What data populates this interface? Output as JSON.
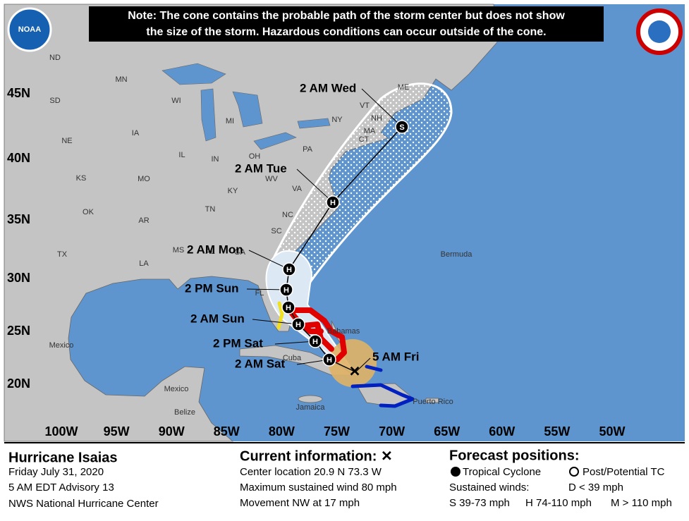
{
  "note": {
    "line1": "Note: The cone contains the probable path of the storm center but does not show",
    "line2": "the size of the storm. Hazardous conditions can occur outside of the cone."
  },
  "logos": {
    "noaa": "NOAA"
  },
  "map": {
    "latitude_labels": [
      "45N",
      "40N",
      "35N",
      "30N",
      "25N",
      "20N"
    ],
    "longitude_labels": [
      "100W",
      "95W",
      "90W",
      "85W",
      "80W",
      "75W",
      "70W",
      "65W",
      "60W",
      "55W",
      "50W"
    ],
    "place_labels": [
      "ND",
      "SD",
      "MN",
      "WI",
      "MI",
      "NE",
      "IA",
      "IL",
      "IN",
      "OH",
      "PA",
      "NY",
      "VT",
      "NH",
      "ME",
      "MA",
      "CT",
      "KS",
      "MO",
      "KY",
      "WV",
      "VA",
      "OK",
      "AR",
      "TN",
      "NC",
      "SC",
      "MS",
      "AL",
      "GA",
      "TX",
      "LA",
      "FL",
      "Bermuda",
      "Bahamas",
      "Mexico",
      "Cuba",
      "Mexico",
      "Belize",
      "Jamaica",
      "Puerto Rico"
    ],
    "forecast_points": [
      {
        "time": "2 AM Wed",
        "symbol": "S"
      },
      {
        "time": "2 AM Tue",
        "symbol": "H"
      },
      {
        "time": "2 AM Mon",
        "symbol": "H"
      },
      {
        "time": "2 PM Sun",
        "symbol": "H"
      },
      {
        "time": null,
        "symbol": "H"
      },
      {
        "time": "2 AM Sun",
        "symbol": "H"
      },
      {
        "time": "2 PM Sat",
        "symbol": "H"
      },
      {
        "time": "2 AM Sat",
        "symbol": "H"
      }
    ],
    "current_label": "5 AM Fri"
  },
  "info": {
    "storm_name": "Hurricane Isaias",
    "date": "Friday July 31, 2020",
    "advisory": "5 AM EDT Advisory 13",
    "office": "NWS National Hurricane Center",
    "current_heading": "Current information: ✕",
    "center_location": "Center location 20.9 N 73.3 W",
    "max_wind": "Maximum sustained wind 80 mph",
    "movement": "Movement NW at 17 mph",
    "forecast_heading": "Forecast positions:",
    "tropical_cyclone": "Tropical Cyclone",
    "post_potential": "Post/Potential TC",
    "sustained_winds": "Sustained winds:",
    "d_range": "D < 39 mph",
    "s_range": "S 39-73 mph",
    "h_range": "H 74-110 mph",
    "m_range": "M > 110 mph"
  }
}
